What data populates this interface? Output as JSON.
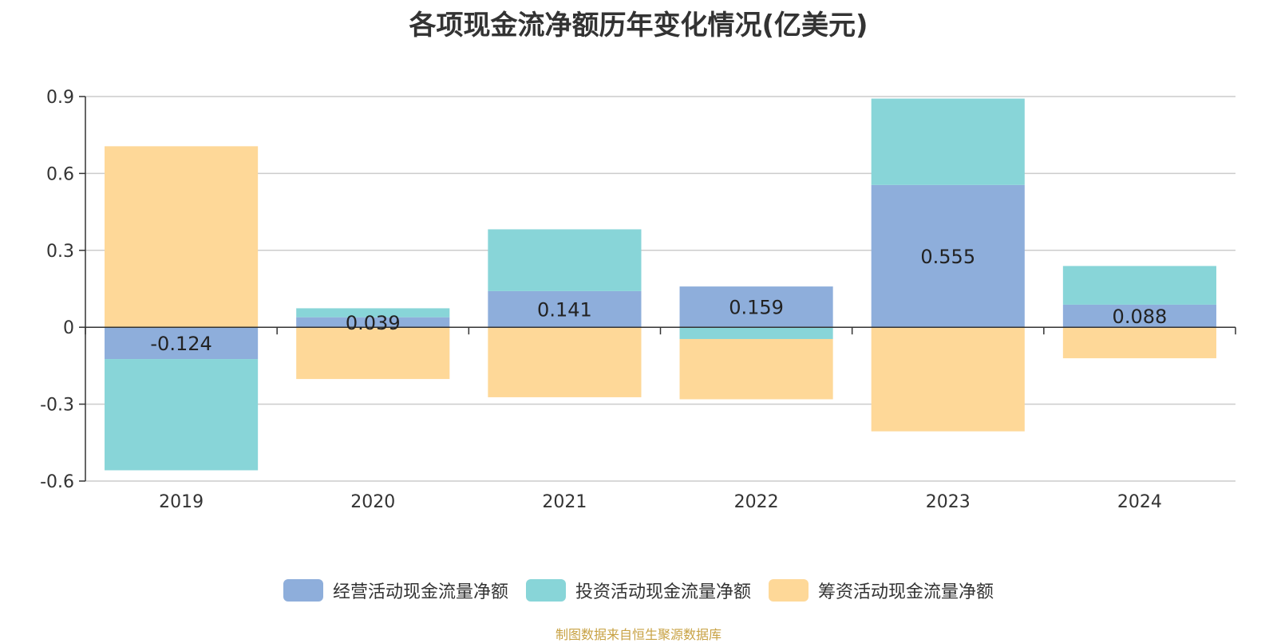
{
  "chart_data": {
    "type": "bar",
    "stacked": true,
    "title": "各项现金流净额历年变化情况(亿美元)",
    "categories": [
      "2019",
      "2020",
      "2021",
      "2022",
      "2023",
      "2024"
    ],
    "series": [
      {
        "name": "经营活动现金流量净额",
        "color": "#8eaedb",
        "values": [
          -0.124,
          0.039,
          0.141,
          0.159,
          0.555,
          0.088
        ],
        "labels": [
          "-0.124",
          "0.039",
          "0.141",
          "0.159",
          "0.555",
          "0.088"
        ]
      },
      {
        "name": "投资活动现金流量净额",
        "color": "#88d5d8",
        "values": [
          -0.434,
          0.035,
          0.241,
          -0.046,
          0.337,
          0.151
        ]
      },
      {
        "name": "筹资活动现金流量净额",
        "color": "#fed898",
        "values": [
          0.706,
          -0.202,
          -0.273,
          -0.235,
          -0.406,
          -0.121
        ]
      }
    ],
    "yticks": [
      -0.6,
      -0.3,
      0,
      0.3,
      0.6,
      0.9
    ],
    "ytick_labels": [
      "-0.6",
      "-0.3",
      "0",
      "0.3",
      "0.6",
      "0.9"
    ],
    "ylim": [
      -0.6,
      0.9
    ],
    "xlabel": "",
    "ylabel": "",
    "grid": true,
    "legend_position": "bottom"
  },
  "source": "制图数据来自恒生聚源数据库"
}
